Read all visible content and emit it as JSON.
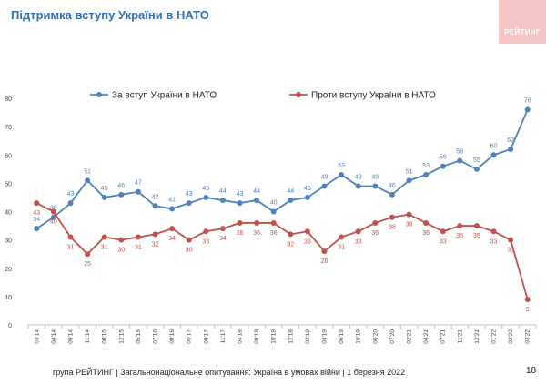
{
  "slide": {
    "title": "Підтримка вступу України в НАТО",
    "logo_text": "РЕЙТИНГ",
    "footer": "група РЕЙТИНГ | Загальнонаціональне опитування: Україна в умовах війни | 1 березня 2022",
    "page_number": "18"
  },
  "colors": {
    "title": "#2e6db4",
    "series_for": "#4f81bd",
    "series_against": "#c0504d",
    "logo_bg": "#f3c5c5"
  },
  "chart_data": {
    "type": "line",
    "title": "Підтримка вступу України в НАТО",
    "xlabel": "",
    "ylabel": "",
    "ylim": [
      0,
      80
    ],
    "yticks": [
      0,
      10,
      20,
      30,
      40,
      50,
      60,
      70,
      80
    ],
    "grid": false,
    "legend_position": "top",
    "categories": [
      "03'14",
      "04'14",
      "09'14",
      "11'14",
      "08'15",
      "12'15",
      "05'16",
      "07'16",
      "09'16",
      "05'17",
      "09'17",
      "11'17",
      "04'18",
      "09'18",
      "10'18",
      "12'18",
      "02'19",
      "04'19",
      "06'19",
      "10'19",
      "06'20",
      "07'20",
      "02'21",
      "04'21",
      "07'21",
      "11'21",
      "12'21",
      "01'22",
      "02'22",
      "03'22"
    ],
    "series": [
      {
        "name": "За вступ України в НАТО",
        "color": "#4f81bd",
        "values": [
          34,
          38,
          43,
          51,
          45,
          46,
          47,
          42,
          41,
          43,
          45,
          44,
          43,
          44,
          40,
          44,
          45,
          49,
          53,
          49,
          49,
          46,
          51,
          53,
          56,
          58,
          55,
          60,
          62,
          76
        ]
      },
      {
        "name": "Проти вступу України в НАТО",
        "color": "#c0504d",
        "values": [
          43,
          40,
          31,
          25,
          31,
          30,
          31,
          32,
          34,
          30,
          33,
          34,
          36,
          36,
          36,
          32,
          33,
          26,
          31,
          33,
          36,
          38,
          39,
          36,
          33,
          35,
          35,
          33,
          30,
          9
        ]
      }
    ]
  }
}
